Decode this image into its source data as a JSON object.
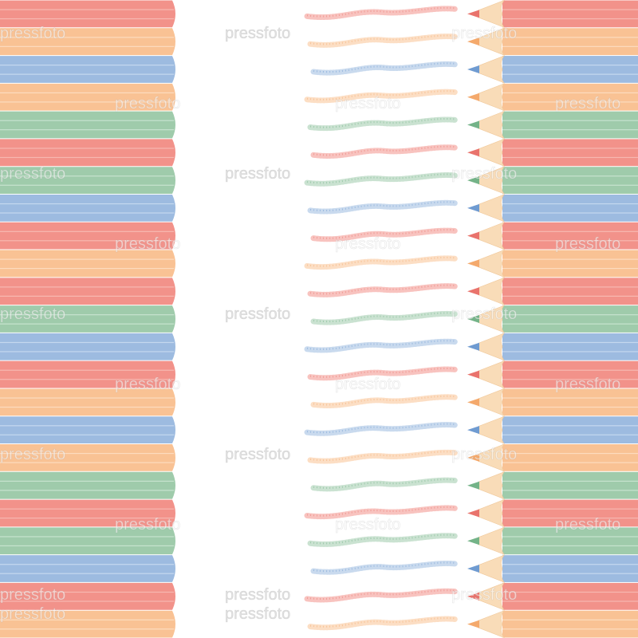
{
  "watermark": "pressfoto"
}
